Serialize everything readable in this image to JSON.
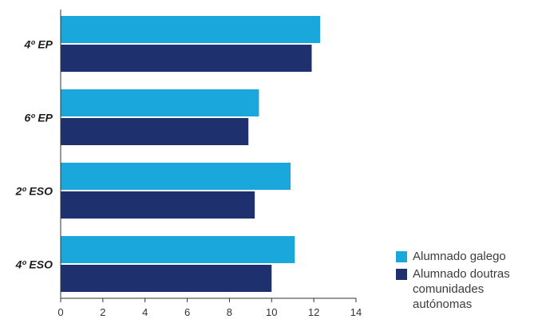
{
  "chart_data": {
    "type": "bar",
    "orientation": "horizontal",
    "categories": [
      "4º EP",
      "6º EP",
      "2º ESO",
      "4º ESO"
    ],
    "series": [
      {
        "name": "Alumnado galego",
        "values": [
          12.3,
          9.4,
          10.9,
          11.1
        ],
        "color": "#1aa7dc"
      },
      {
        "name": "Alumnado doutras comunidades autónomas",
        "values": [
          11.9,
          8.9,
          9.2,
          10.0
        ],
        "color": "#1f306e"
      }
    ],
    "xlim": [
      0,
      14
    ],
    "xticks": [
      0,
      2,
      4,
      6,
      8,
      10,
      12,
      14
    ],
    "title": "",
    "xlabel": "",
    "ylabel": "",
    "grid": false,
    "legend_position": "bottom-right"
  },
  "legend": {
    "items": [
      {
        "label_lines": [
          "Alumnado galego"
        ],
        "color": "#1aa7dc"
      },
      {
        "label_lines": [
          "Alumnado doutras",
          "comunidades",
          "autónomas"
        ],
        "color": "#1f306e"
      }
    ]
  }
}
